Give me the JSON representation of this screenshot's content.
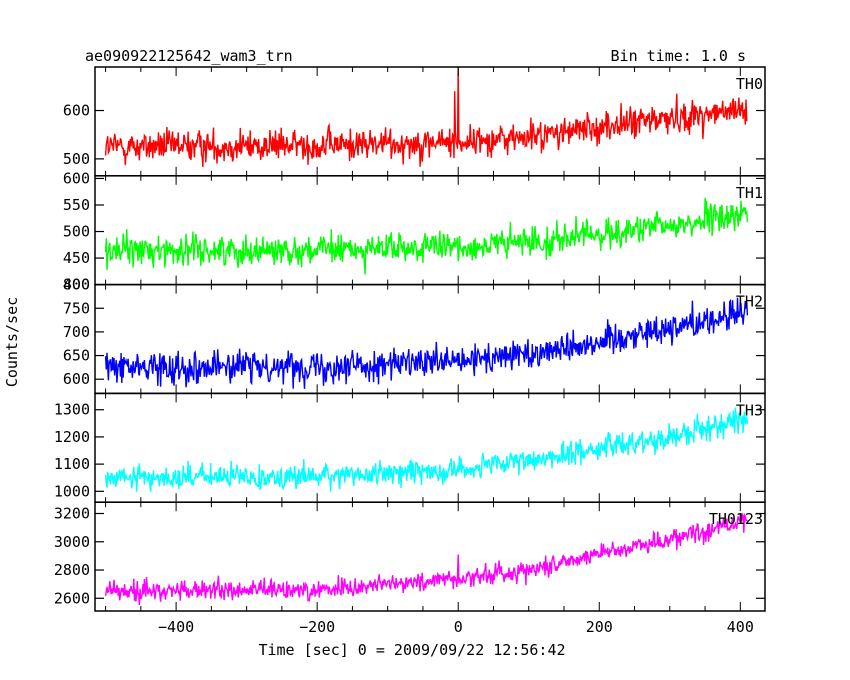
{
  "header": {
    "left": "ae090922125642_wam3_trn",
    "right": "Bin time: 1.0 s"
  },
  "chart_data": {
    "type": "line",
    "title": "ae090922125642_wam3_trn",
    "subtitle": "Bin time: 1.0 s",
    "xlabel": "Time [sec] 0 = 2009/09/22 12:56:42",
    "ylabel": "Counts/sec",
    "xlim": [
      -515,
      435
    ],
    "xticks": [
      -400,
      -200,
      0,
      200,
      400
    ],
    "xtick_labels": [
      "−400",
      "−200",
      "0",
      "200",
      "400"
    ],
    "x_range_data": [
      -500,
      410
    ],
    "bin_time_s": 1.0,
    "panels": [
      {
        "name": "TH0",
        "color": "#ff0000",
        "ylim": [
          465,
          690
        ],
        "yticks": [
          500,
          600
        ],
        "trend": [
          [
            -500,
            525
          ],
          [
            -200,
            528
          ],
          [
            0,
            535
          ],
          [
            100,
            545
          ],
          [
            200,
            565
          ],
          [
            300,
            585
          ],
          [
            410,
            600
          ]
        ],
        "noise_sd": 28,
        "spikes": [
          [
            0,
            690
          ],
          [
            -5,
            640
          ]
        ]
      },
      {
        "name": "TH1",
        "color": "#00ff00",
        "ylim": [
          400,
          605
        ],
        "yticks": [
          400,
          450,
          500,
          550,
          600
        ],
        "trend": [
          [
            -500,
            465
          ],
          [
            -200,
            465
          ],
          [
            0,
            470
          ],
          [
            100,
            480
          ],
          [
            200,
            495
          ],
          [
            300,
            510
          ],
          [
            410,
            535
          ]
        ],
        "noise_sd": 24,
        "spikes": []
      },
      {
        "name": "TH2",
        "color": "#0000ff",
        "ylim": [
          570,
          800
        ],
        "yticks": [
          600,
          650,
          700,
          750,
          800
        ],
        "trend": [
          [
            -500,
            625
          ],
          [
            -200,
            628
          ],
          [
            0,
            635
          ],
          [
            100,
            655
          ],
          [
            200,
            680
          ],
          [
            300,
            710
          ],
          [
            410,
            740
          ]
        ],
        "noise_sd": 28,
        "spikes": []
      },
      {
        "name": "TH3",
        "color": "#00ffff",
        "ylim": [
          960,
          1360
        ],
        "yticks": [
          1000,
          1100,
          1200,
          1300
        ],
        "trend": [
          [
            -500,
            1050
          ],
          [
            -200,
            1055
          ],
          [
            0,
            1080
          ],
          [
            100,
            1110
          ],
          [
            200,
            1160
          ],
          [
            300,
            1200
          ],
          [
            410,
            1270
          ]
        ],
        "noise_sd": 38,
        "spikes": []
      },
      {
        "name": "TH0123",
        "color": "#ff00ff",
        "ylim": [
          2510,
          3280
        ],
        "yticks": [
          2600,
          2800,
          3000,
          3200
        ],
        "trend": [
          [
            -500,
            2650
          ],
          [
            -200,
            2660
          ],
          [
            0,
            2740
          ],
          [
            100,
            2800
          ],
          [
            200,
            2920
          ],
          [
            300,
            3020
          ],
          [
            410,
            3150
          ]
        ],
        "noise_sd": 60,
        "spikes": [
          [
            0,
            2910
          ]
        ]
      }
    ]
  }
}
